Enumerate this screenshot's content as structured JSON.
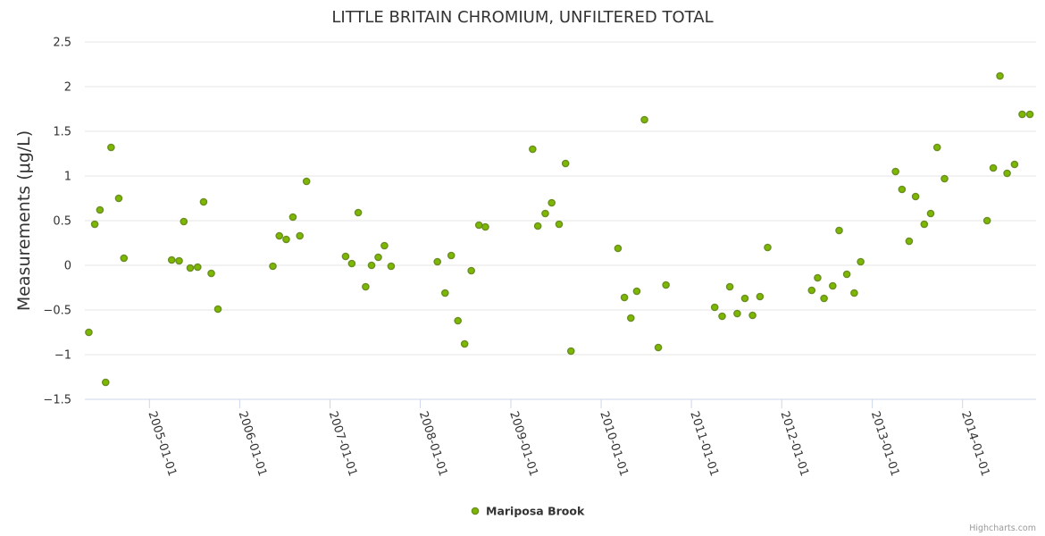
{
  "chart_data": {
    "type": "scatter",
    "title": "LITTLE BRITAIN CHROMIUM, UNFILTERED TOTAL",
    "ylabel": "Measurements (μg/L)",
    "xlabel": "",
    "ylim": [
      -1.5,
      2.5
    ],
    "yticks": [
      {
        "value": 2.5,
        "label": "2.5"
      },
      {
        "value": 2,
        "label": "2"
      },
      {
        "value": 1.5,
        "label": "1.5"
      },
      {
        "value": 1,
        "label": "1"
      },
      {
        "value": 0.5,
        "label": "0.5"
      },
      {
        "value": 0,
        "label": "0"
      },
      {
        "value": -0.5,
        "label": "−0.5"
      },
      {
        "value": -1,
        "label": "−1"
      },
      {
        "value": -1.5,
        "label": "−1.5"
      }
    ],
    "xlim": [
      "2004-04-15",
      "2014-10-25"
    ],
    "xticks": [
      "2005-01-01",
      "2006-01-01",
      "2007-01-01",
      "2008-01-01",
      "2009-01-01",
      "2010-01-01",
      "2011-01-01",
      "2012-01-01",
      "2013-01-01",
      "2014-01-01"
    ],
    "grid": true,
    "legend": "bottom-center",
    "series": [
      {
        "name": "Mariposa Brook",
        "color": "#7cb800",
        "points": [
          [
            "2004-05-01",
            -0.75
          ],
          [
            "2004-05-25",
            0.46
          ],
          [
            "2004-06-15",
            0.62
          ],
          [
            "2004-07-08",
            -1.31
          ],
          [
            "2004-07-30",
            1.32
          ],
          [
            "2004-08-30",
            0.75
          ],
          [
            "2004-09-20",
            0.08
          ],
          [
            "2005-04-01",
            0.06
          ],
          [
            "2005-05-01",
            0.05
          ],
          [
            "2005-05-20",
            0.49
          ],
          [
            "2005-06-15",
            -0.03
          ],
          [
            "2005-07-15",
            -0.02
          ],
          [
            "2005-08-08",
            0.71
          ],
          [
            "2005-09-08",
            -0.09
          ],
          [
            "2005-10-05",
            -0.49
          ],
          [
            "2006-05-15",
            -0.01
          ],
          [
            "2006-06-10",
            0.33
          ],
          [
            "2006-07-08",
            0.29
          ],
          [
            "2006-08-04",
            0.54
          ],
          [
            "2006-09-01",
            0.33
          ],
          [
            "2006-09-28",
            0.94
          ],
          [
            "2007-03-05",
            0.1
          ],
          [
            "2007-03-30",
            0.02
          ],
          [
            "2007-04-25",
            0.59
          ],
          [
            "2007-05-25",
            -0.24
          ],
          [
            "2007-06-18",
            0.0
          ],
          [
            "2007-07-15",
            0.09
          ],
          [
            "2007-08-09",
            0.22
          ],
          [
            "2007-09-05",
            -0.01
          ],
          [
            "2008-03-10",
            0.04
          ],
          [
            "2008-04-10",
            -0.31
          ],
          [
            "2008-05-05",
            0.11
          ],
          [
            "2008-06-01",
            -0.62
          ],
          [
            "2008-06-28",
            -0.88
          ],
          [
            "2008-07-25",
            -0.06
          ],
          [
            "2008-08-25",
            0.45
          ],
          [
            "2008-09-20",
            0.43
          ],
          [
            "2009-03-30",
            1.3
          ],
          [
            "2009-04-20",
            0.44
          ],
          [
            "2009-05-20",
            0.58
          ],
          [
            "2009-06-15",
            0.7
          ],
          [
            "2009-07-15",
            0.46
          ],
          [
            "2009-08-10",
            1.14
          ],
          [
            "2009-09-01",
            -0.96
          ],
          [
            "2010-03-10",
            0.19
          ],
          [
            "2010-04-05",
            -0.36
          ],
          [
            "2010-05-01",
            -0.59
          ],
          [
            "2010-05-25",
            -0.29
          ],
          [
            "2010-06-25",
            1.63
          ],
          [
            "2010-08-20",
            -0.92
          ],
          [
            "2010-09-20",
            -0.22
          ],
          [
            "2011-04-05",
            -0.47
          ],
          [
            "2011-05-05",
            -0.57
          ],
          [
            "2011-06-05",
            -0.24
          ],
          [
            "2011-07-05",
            -0.54
          ],
          [
            "2011-08-05",
            -0.37
          ],
          [
            "2011-09-05",
            -0.56
          ],
          [
            "2011-10-05",
            -0.35
          ],
          [
            "2011-11-05",
            0.2
          ],
          [
            "2012-05-01",
            -0.28
          ],
          [
            "2012-05-25",
            -0.14
          ],
          [
            "2012-06-20",
            -0.37
          ],
          [
            "2012-07-25",
            -0.23
          ],
          [
            "2012-08-20",
            0.39
          ],
          [
            "2012-09-20",
            -0.1
          ],
          [
            "2012-10-20",
            -0.31
          ],
          [
            "2012-11-15",
            0.04
          ],
          [
            "2013-04-05",
            1.05
          ],
          [
            "2013-05-01",
            0.85
          ],
          [
            "2013-05-30",
            0.27
          ],
          [
            "2013-06-25",
            0.77
          ],
          [
            "2013-07-30",
            0.46
          ],
          [
            "2013-08-25",
            0.58
          ],
          [
            "2013-09-20",
            1.32
          ],
          [
            "2013-10-20",
            0.97
          ],
          [
            "2014-04-10",
            0.5
          ],
          [
            "2014-05-05",
            1.09
          ],
          [
            "2014-06-01",
            2.12
          ],
          [
            "2014-06-30",
            1.03
          ],
          [
            "2014-07-30",
            1.13
          ],
          [
            "2014-08-30",
            1.69
          ],
          [
            "2014-09-30",
            1.69
          ]
        ]
      }
    ],
    "credits": "Highcharts.com"
  }
}
